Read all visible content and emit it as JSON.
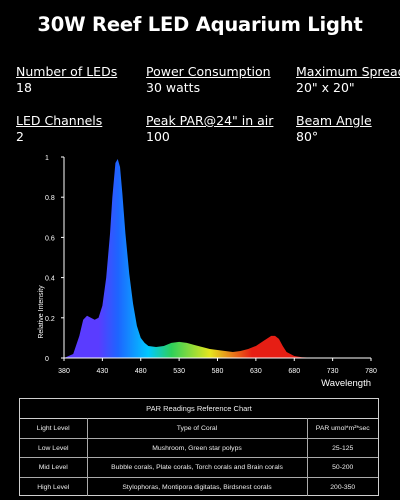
{
  "title": "30W Reef LED Aquarium Light",
  "specs": [
    {
      "label": "Number of LEDs",
      "value": "18"
    },
    {
      "label": "Power Consumption",
      "value": "30 watts"
    },
    {
      "label": "Maximum Spread",
      "value": "20\" x 20\""
    },
    {
      "label": "LED Channels",
      "value": "2"
    },
    {
      "label": "Peak PAR@24\" in air",
      "value": "100"
    },
    {
      "label": "Beam Angle",
      "value": "80°"
    }
  ],
  "chart_data": {
    "type": "area",
    "title": "",
    "xlabel": "Wavelength",
    "ylabel": "Relative Intensity",
    "xlim": [
      380,
      780
    ],
    "ylim": [
      0,
      1
    ],
    "x_ticks": [
      "380",
      "430",
      "480",
      "530",
      "580",
      "630",
      "680",
      "730",
      "780"
    ],
    "y_ticks": [
      "0",
      "0.2",
      "0.4",
      "0.6",
      "0.8",
      "1"
    ],
    "grid": false,
    "series": [
      {
        "name": "",
        "x": [
          380,
          392,
          400,
          405,
          410,
          415,
          420,
          425,
          430,
          435,
          440,
          443,
          447,
          450,
          453,
          456,
          460,
          465,
          470,
          475,
          480,
          485,
          490,
          500,
          510,
          520,
          530,
          540,
          550,
          560,
          570,
          580,
          590,
          600,
          610,
          620,
          630,
          640,
          650,
          655,
          660,
          665,
          670,
          680,
          690,
          700,
          720,
          750,
          780
        ],
        "y": [
          0,
          0.02,
          0.11,
          0.19,
          0.21,
          0.2,
          0.19,
          0.2,
          0.26,
          0.4,
          0.62,
          0.8,
          0.97,
          0.99,
          0.95,
          0.82,
          0.62,
          0.42,
          0.27,
          0.16,
          0.1,
          0.075,
          0.06,
          0.055,
          0.06,
          0.075,
          0.08,
          0.075,
          0.065,
          0.055,
          0.045,
          0.04,
          0.035,
          0.03,
          0.035,
          0.045,
          0.06,
          0.085,
          0.11,
          0.11,
          0.095,
          0.06,
          0.03,
          0.01,
          0.004,
          0.002,
          0,
          0,
          0
        ]
      }
    ],
    "colors": {
      "violet": "#5a3cff",
      "blue": "#1e64ff",
      "cyan": "#00c8ff",
      "green": "#2ed05a",
      "yellow": "#e6e61e",
      "red": "#e61e14",
      "axis": "#ffffff"
    }
  },
  "table": {
    "title": "PAR Readings Reference Chart",
    "headers": [
      "Light Level",
      "Type of Coral",
      "PAR umol*m²*sec"
    ],
    "rows": [
      [
        "Low Level",
        "Mushroom, Green star polyps",
        "25-125"
      ],
      [
        "Mid Level",
        "Bubble corals, Plate corals, Torch corals and Brain corals",
        "50-200"
      ],
      [
        "High Level",
        "Stylophoras, Montipora digitatas, Birdsnest corals",
        "200-350"
      ]
    ]
  }
}
